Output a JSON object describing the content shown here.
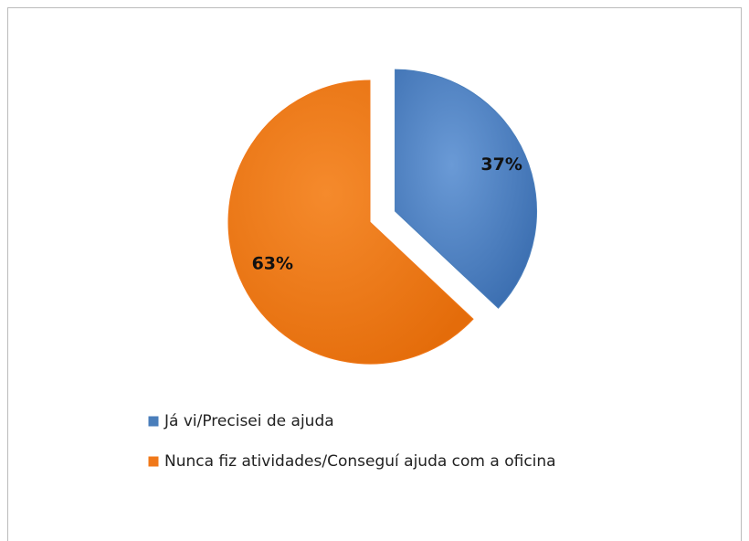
{
  "chart_data": {
    "type": "pie",
    "categories": [
      "Já vi/Precisei de ajuda",
      "Nunca fiz atividades/Conseguí ajuda com a oficina"
    ],
    "values": [
      37,
      63
    ],
    "value_labels": [
      "37%",
      "63%"
    ],
    "colors": [
      "#4a7ebb",
      "#f07819"
    ]
  }
}
